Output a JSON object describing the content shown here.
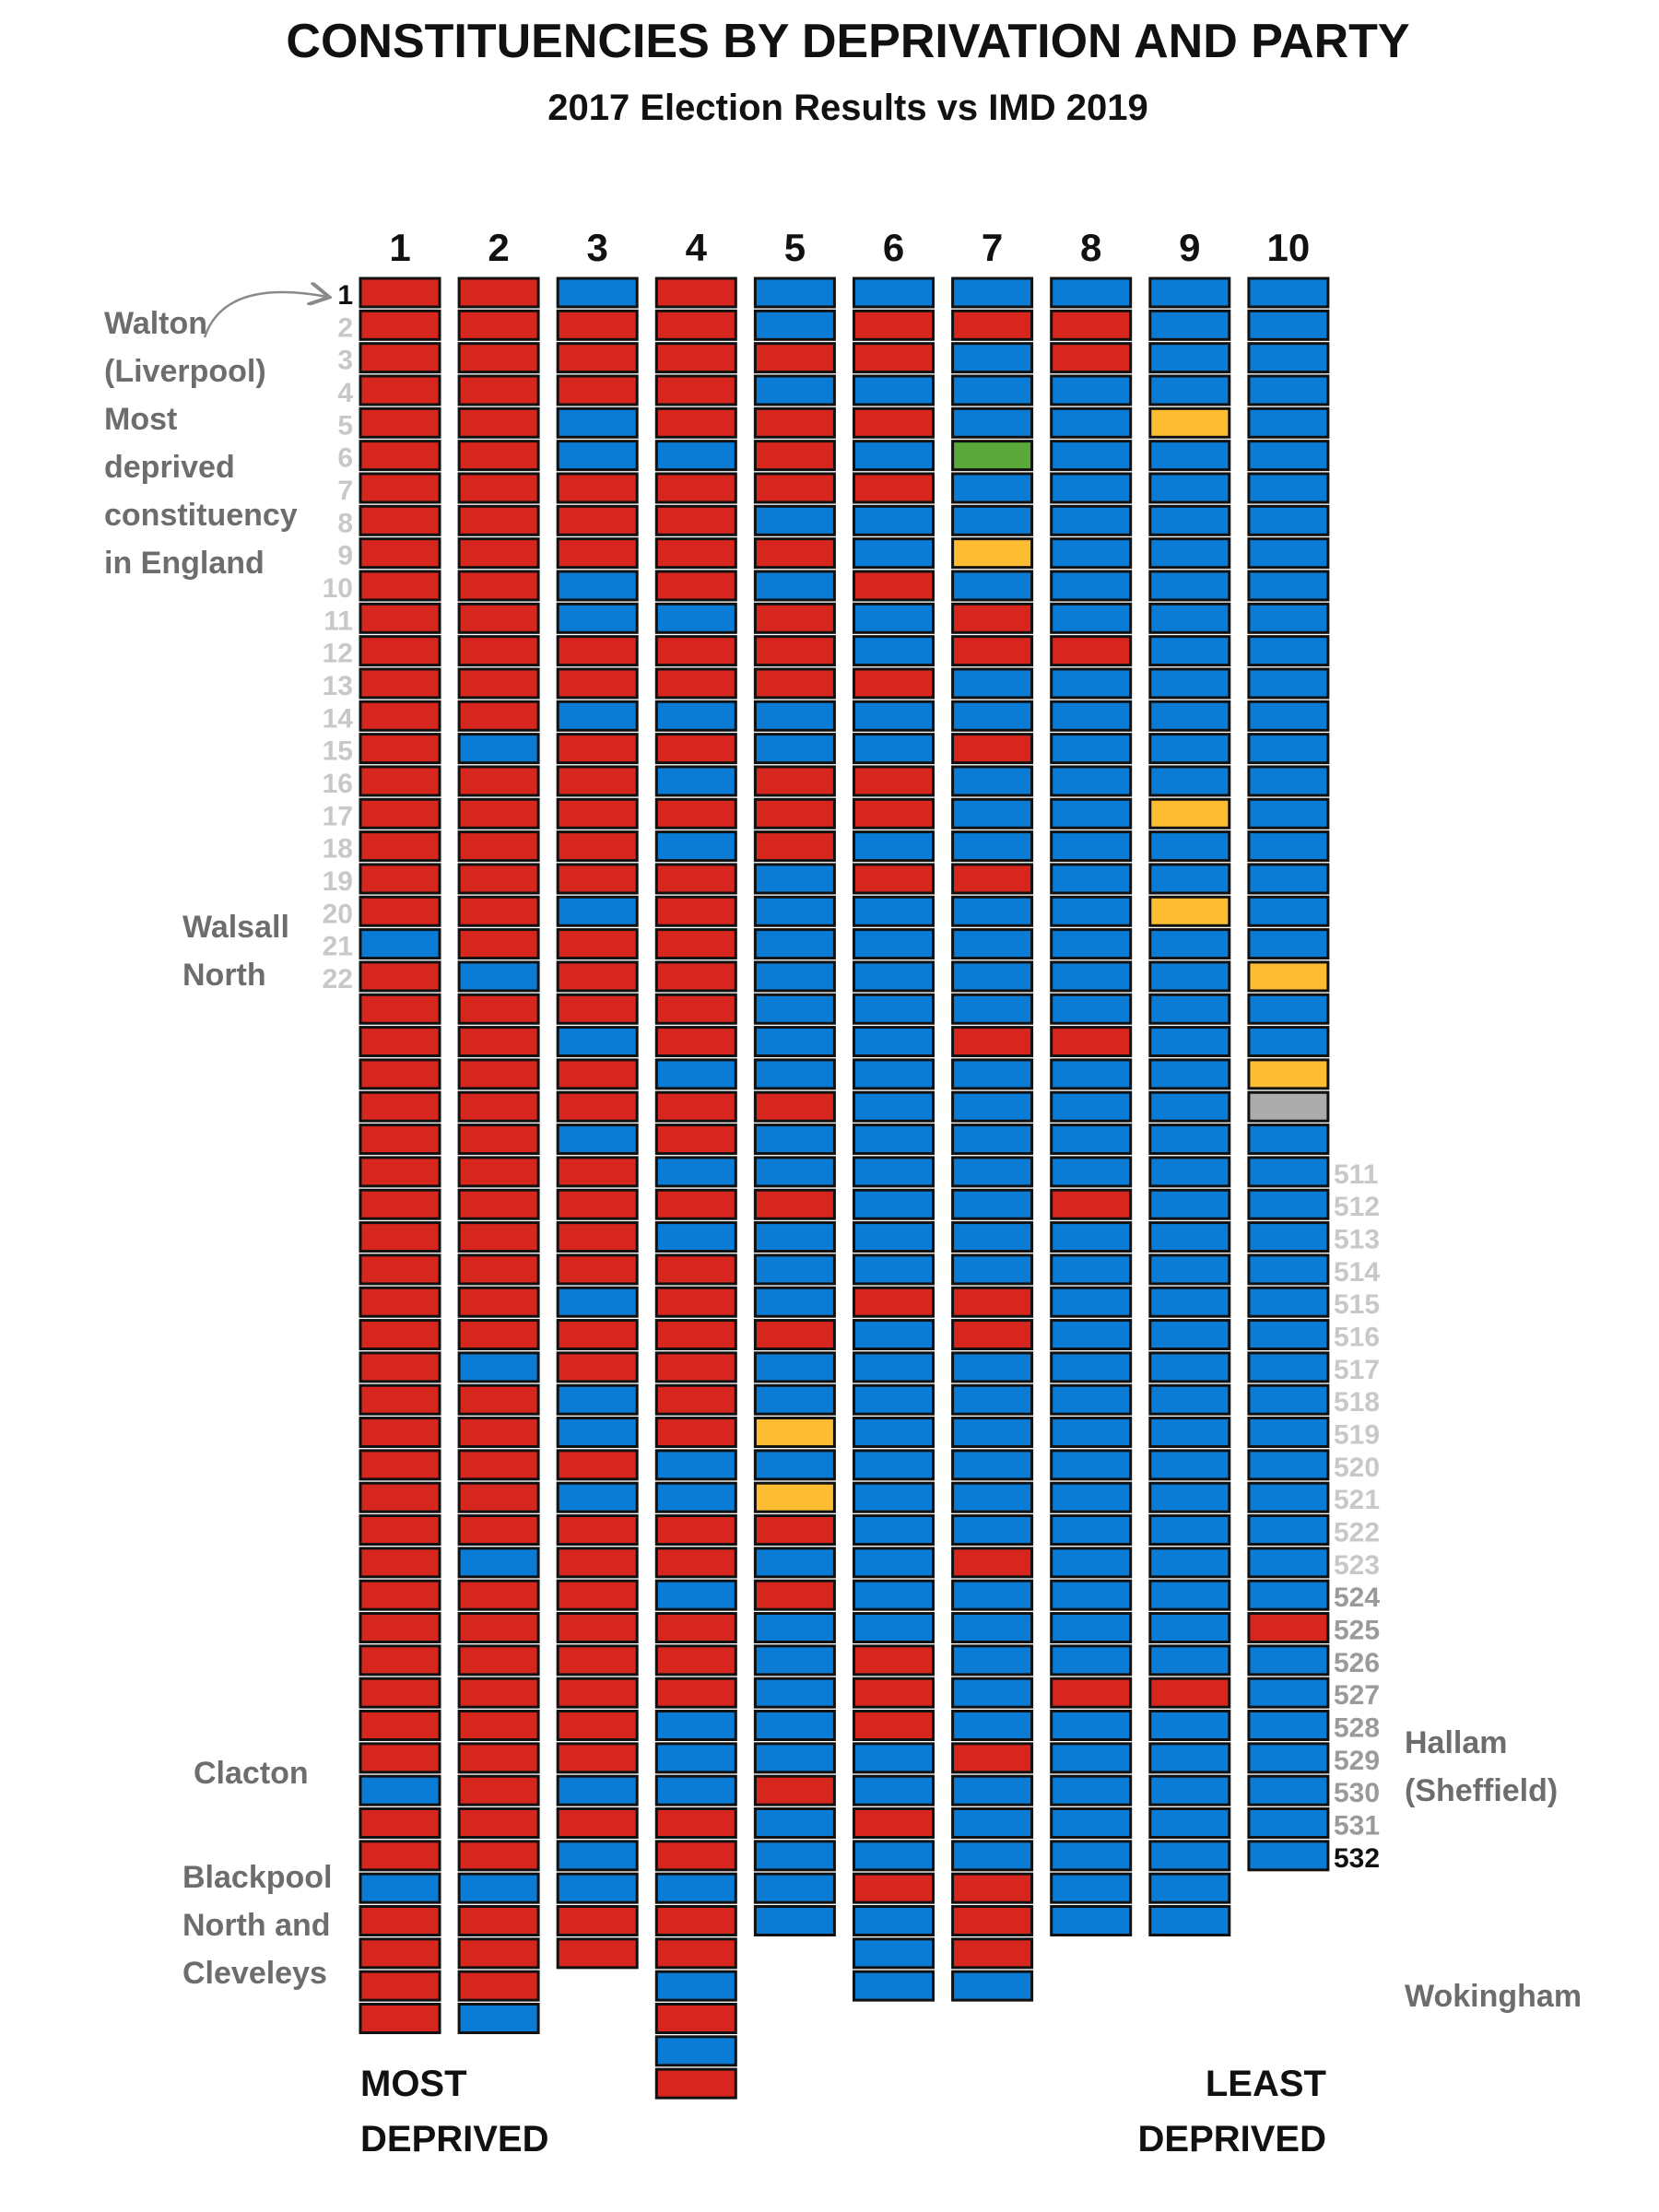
{
  "colors": {
    "L": "#d7261e",
    "C": "#0a7cd6",
    "Y": "#fdbd33",
    "G": "#5aa83a",
    "I": "#acacac",
    "outline": "#111111",
    "index_light": "#c8c8c8",
    "index_dark": "#111111",
    "annotation": "#6d6d6d"
  },
  "chart_data": {
    "type": "waffle",
    "title": "CONSTITUENCIES BY DEPRIVATION AND PARTY",
    "subtitle": "2017 Election Results vs IMD 2019",
    "legend_codes": {
      "L": "red",
      "C": "blue",
      "Y": "yellow",
      "G": "green",
      "I": "grey"
    },
    "deciles": [
      "1",
      "2",
      "3",
      "4",
      "5",
      "6",
      "7",
      "8",
      "9",
      "10"
    ],
    "columns": [
      "LLLLLLLLLLLLLLLLLLLLCLLLLLLLLLLLLLLLLLLLLLLLLLCLLCLLLL",
      "LLLLLLLLLLLLLLCLLLLLLCLLLLLLLLLLLCLLLLLCLLLLLLLLLCLLLC",
      "CLLLCCLLLCCLLCLLLLLCLLLCLLCLLLLCLLCCLCLLLLLLLLCLCCLL",
      "LLLLLCLLLLCLLCLCLCLLLLLLCLLCLCLLLLLLCCLLCLLLCCCLLCLLCLCL",
      "CCLCLLLCLCLLLCCLLLCCCCCCCLCCLCCCLCCYCYLCLCCCCCLCCCC",
      "CLLCLCLCCLCCLCCLLCLCCCCCCCCCCCCLCCCCCCCCCCLLLCCLCLCCC",
      "CLCCCGCCYCLLCCLCCCLCCCCLCCCCCCCLLCCCCCCLCCCCCLCCCLLLC",
      "CLLCCCCCCCCLCCCCCCCCCCCLCCCCLCCCCCCCCCCCCCCLCCCCCCC",
      "CCCCYCCCCCCCCCCCYCCYCCCCCCCCCCCCCCCCCCCCCCCLCCCCCCC",
      "CCCCCCCCCCCCCCCCCCCCCYCCYICCCCCCCCCCCCCCCLCCCCCCC"
    ],
    "index_top": [
      "1",
      "2",
      "3",
      "4",
      "5",
      "6",
      "7",
      "8",
      "9",
      "10",
      "11",
      "12",
      "13",
      "14",
      "15",
      "16",
      "17",
      "18",
      "19",
      "20",
      "21",
      "22"
    ],
    "index_bottom": [
      "511",
      "512",
      "513",
      "514",
      "515",
      "516",
      "517",
      "518",
      "519",
      "520",
      "521",
      "522",
      "523",
      "524",
      "525",
      "526",
      "527",
      "528",
      "529",
      "530",
      "531",
      "532"
    ],
    "annotations": {
      "walton": [
        "Walton",
        "(Liverpool)",
        "Most",
        "deprived",
        "constituency",
        "in England"
      ],
      "walsall": [
        "Walsall",
        "North"
      ],
      "clacton": [
        "Clacton"
      ],
      "blackpool": [
        "Blackpool",
        "North and",
        "Cleveleys"
      ],
      "hallam": [
        "Hallam",
        "(Sheffield)"
      ],
      "wokingham": [
        "Wokingham"
      ]
    },
    "footer": {
      "left": [
        "MOST",
        "DEPRIVED"
      ],
      "right": [
        "LEAST",
        "DEPRIVED"
      ]
    }
  }
}
